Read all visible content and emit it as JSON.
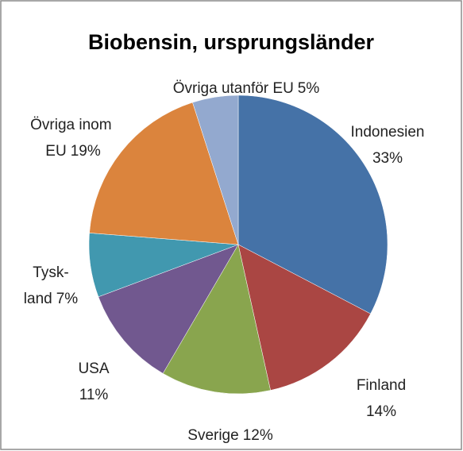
{
  "chart_data": {
    "type": "pie",
    "title": "Biobensin, ursprungsländer",
    "categories": [
      "Indonesien",
      "Finland",
      "Sverige",
      "USA",
      "Tysk-land",
      "Övriga inom EU",
      "Övriga utanför EU"
    ],
    "values": [
      33,
      14,
      12,
      11,
      7,
      19,
      5
    ],
    "value_labels": [
      "33%",
      "14%",
      "12%",
      "11%",
      "7%",
      "19%",
      "5%"
    ],
    "colors": [
      "#4572a7",
      "#aa4643",
      "#89a54e",
      "#71588f",
      "#4198af",
      "#db843d",
      "#93a9cf"
    ]
  }
}
